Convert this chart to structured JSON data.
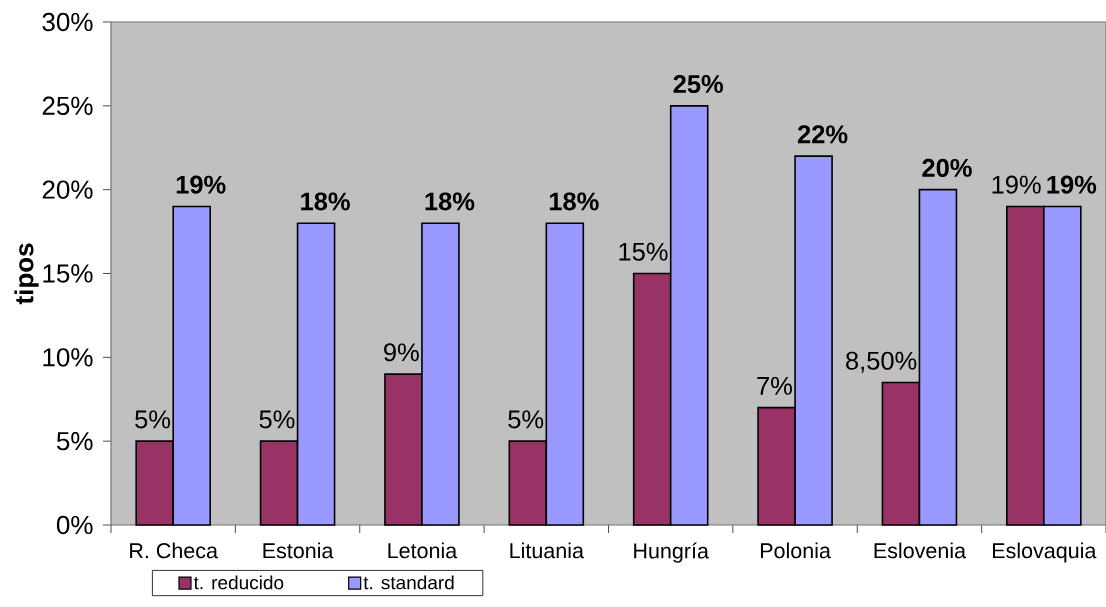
{
  "chart_data": {
    "type": "bar",
    "ylabel": "tipos",
    "categories": [
      "R. Checa",
      "Estonia",
      "Letonia",
      "Lituania",
      "Hungría",
      "Polonia",
      "Eslovenia",
      "Eslovaquia"
    ],
    "series": [
      {
        "name": "t. reducido",
        "color": "#993366",
        "values": [
          5,
          5,
          9,
          5,
          15,
          7,
          8.5,
          19
        ],
        "value_labels": [
          "5%",
          "5%",
          "9%",
          "5%",
          "15%",
          "7%",
          "8,50%",
          "19%"
        ]
      },
      {
        "name": "t. standard",
        "color": "#9999ff",
        "values": [
          19,
          18,
          18,
          18,
          25,
          22,
          20,
          19
        ],
        "value_labels": [
          "19%",
          "18%",
          "18%",
          "18%",
          "25%",
          "22%",
          "20%",
          "19%"
        ]
      }
    ],
    "ylim": [
      0,
      30
    ],
    "yticks": [
      {
        "value": 0,
        "label": "0%"
      },
      {
        "value": 5,
        "label": "5%"
      },
      {
        "value": 10,
        "label": "10%"
      },
      {
        "value": 15,
        "label": "15%"
      },
      {
        "value": 20,
        "label": "20%"
      },
      {
        "value": 25,
        "label": "25%"
      },
      {
        "value": 30,
        "label": "30%"
      }
    ],
    "legend": "bottom left"
  }
}
